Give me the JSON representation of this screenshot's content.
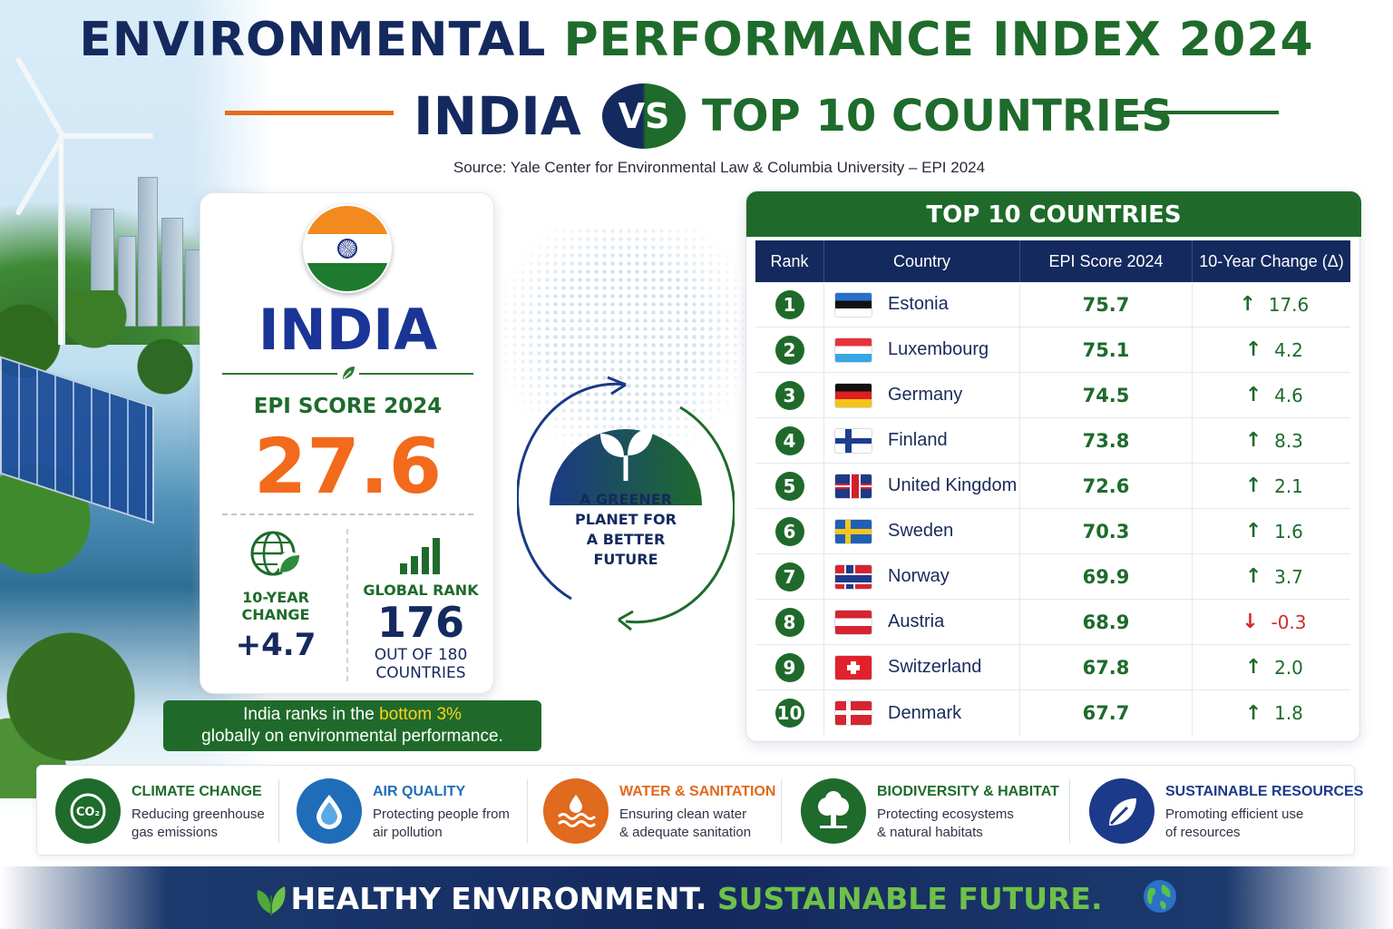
{
  "header": {
    "title_part1": "ENVIRONMENTAL",
    "title_part2": "PERFORMANCE INDEX 2024",
    "india_word": "INDIA",
    "vs_label": "VS",
    "top10_word": "TOP 10 COUNTRIES",
    "source": "Source: Yale Center for Environmental Law & Columbia University – EPI 2024"
  },
  "india": {
    "name": "INDIA",
    "epi_label": "EPI SCORE 2024",
    "epi_score": "27.6",
    "change_label": "10-YEAR CHANGE",
    "change_value": "+4.7",
    "rank_label": "GLOBAL RANK",
    "rank_value": "176",
    "rank_of_line1": "OUT OF 180",
    "rank_of_line2": "COUNTRIES",
    "note_pre": "India ranks in the ",
    "note_highlight": "bottom 3%",
    "note_post": "globally on environmental performance.",
    "colors": {
      "saffron": "#f28a1f",
      "green": "#1d7a2e",
      "navy": "#1c2f86",
      "score": "#f26a1b"
    }
  },
  "emblem": {
    "line1": "A GREENER",
    "line2": "PLANET FOR",
    "line3": "A BETTER",
    "line4": "FUTURE"
  },
  "table": {
    "title": "TOP 10 COUNTRIES",
    "headers": [
      "Rank",
      "Country",
      "EPI Score 2024",
      "10-Year Change (Δ)"
    ],
    "rows": [
      {
        "rank": "1",
        "country": "Estonia",
        "flag": "estonia-flag",
        "score": "75.7",
        "change": "17.6",
        "direction": "up"
      },
      {
        "rank": "2",
        "country": "Luxembourg",
        "flag": "luxembourg-flag",
        "score": "75.1",
        "change": "4.2",
        "direction": "up"
      },
      {
        "rank": "3",
        "country": "Germany",
        "flag": "germany-flag",
        "score": "74.5",
        "change": "4.6",
        "direction": "up"
      },
      {
        "rank": "4",
        "country": "Finland",
        "flag": "finland-flag",
        "score": "73.8",
        "change": "8.3",
        "direction": "up"
      },
      {
        "rank": "5",
        "country": "United Kingdom",
        "flag": "uk-flag",
        "score": "72.6",
        "change": "2.1",
        "direction": "up"
      },
      {
        "rank": "6",
        "country": "Sweden",
        "flag": "sweden-flag",
        "score": "70.3",
        "change": "1.6",
        "direction": "up"
      },
      {
        "rank": "7",
        "country": "Norway",
        "flag": "norway-flag",
        "score": "69.9",
        "change": "3.7",
        "direction": "up"
      },
      {
        "rank": "8",
        "country": "Austria",
        "flag": "austria-flag",
        "score": "68.9",
        "change": "-0.3",
        "direction": "down"
      },
      {
        "rank": "9",
        "country": "Switzerland",
        "flag": "switzerland-flag",
        "score": "67.8",
        "change": "2.0",
        "direction": "up"
      },
      {
        "rank": "10",
        "country": "Denmark",
        "flag": "denmark-flag",
        "score": "67.7",
        "change": "1.8",
        "direction": "up"
      }
    ],
    "colors": {
      "up": "#1e6b2b",
      "down": "#d62a2a",
      "header": "#14295e",
      "title_bar": "#1f6a2a"
    }
  },
  "categories": [
    {
      "title": "CLIMATE CHANGE",
      "desc_line1": "Reducing greenhouse",
      "desc_line2": "gas emissions",
      "icon": "co2-icon",
      "icon_text": "CO₂",
      "color": "#1e6b2b"
    },
    {
      "title": "AIR QUALITY",
      "desc_line1": "Protecting people from",
      "desc_line2": "air pollution",
      "icon": "water-drop-icon",
      "color": "#1f6db8"
    },
    {
      "title": "WATER & SANITATION",
      "desc_line1": "Ensuring clean water",
      "desc_line2": "& adequate sanitation",
      "icon": "water-waves-icon",
      "color": "#e06a1d"
    },
    {
      "title": "BIODIVERSITY & HABITAT",
      "desc_line1": "Protecting ecosystems",
      "desc_line2": "& natural habitats",
      "icon": "tree-icon",
      "color": "#1e6b2b"
    },
    {
      "title": "SUSTAINABLE RESOURCES",
      "desc_line1": "Promoting efficient use",
      "desc_line2": "of resources",
      "icon": "leaf-icon",
      "color": "#1c3a8a"
    }
  ],
  "footer": {
    "part1": "HEALTHY ENVIRONMENT.",
    "part2": "SUSTAINABLE FUTURE."
  }
}
